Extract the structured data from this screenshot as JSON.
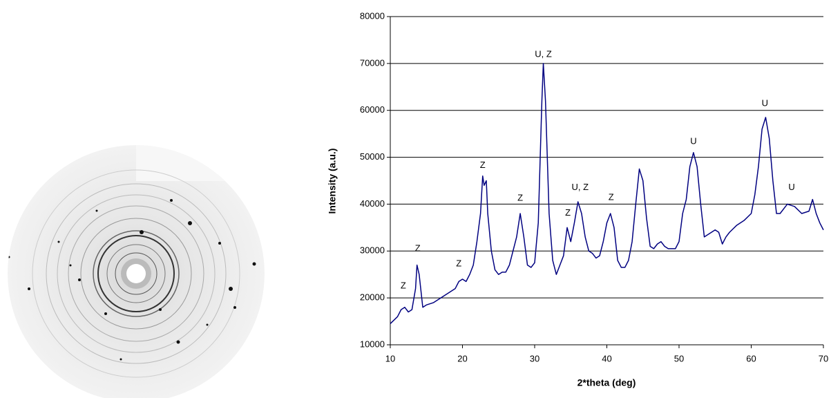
{
  "chart_data": {
    "type": "line",
    "x_label": "2*theta (deg)",
    "y_label": "Intensity (a.u.)",
    "x": [
      10,
      11,
      11.5,
      12,
      12.5,
      13,
      13.5,
      13.7,
      14,
      14.5,
      15,
      16,
      17,
      18,
      19,
      19.5,
      20,
      20.5,
      21,
      21.5,
      22,
      22.5,
      22.8,
      23,
      23.3,
      23.5,
      24,
      24.5,
      25,
      25.5,
      26,
      26.5,
      27,
      27.5,
      28,
      28.5,
      29,
      29.5,
      30,
      30.5,
      31,
      31.2,
      31.5,
      32,
      32.5,
      33,
      33.5,
      34,
      34.5,
      35,
      35.5,
      36,
      36.5,
      37,
      37.5,
      38,
      38.5,
      39,
      39.5,
      40,
      40.5,
      41,
      41.5,
      42,
      42.5,
      43,
      43.5,
      44,
      44.5,
      45,
      45.5,
      46,
      46.5,
      47,
      47.5,
      48,
      48.5,
      49,
      49.5,
      50,
      50.5,
      51,
      51.5,
      52,
      52.5,
      53,
      53.5,
      54,
      55,
      55.5,
      56,
      56.5,
      57,
      58,
      59,
      60,
      60.5,
      61,
      61.5,
      62,
      62.5,
      63,
      63.5,
      64,
      65,
      66,
      67,
      68,
      68.5,
      69,
      69.5,
      70
    ],
    "values": [
      14500,
      16000,
      17500,
      18000,
      17000,
      17500,
      22000,
      27000,
      25000,
      18000,
      18500,
      19000,
      20000,
      21000,
      22000,
      23500,
      24000,
      23500,
      25000,
      27000,
      32000,
      38000,
      46000,
      44000,
      45000,
      38000,
      30000,
      26000,
      25000,
      25500,
      25500,
      27000,
      30000,
      33000,
      38000,
      33000,
      27000,
      26500,
      27500,
      36000,
      62000,
      70000,
      62000,
      38000,
      28000,
      25000,
      27000,
      29000,
      35000,
      32000,
      36000,
      40500,
      38000,
      33000,
      30000,
      29500,
      28500,
      29000,
      32000,
      36000,
      38000,
      35000,
      28000,
      26500,
      26500,
      28000,
      32000,
      40000,
      47500,
      45000,
      37000,
      31000,
      30500,
      31500,
      32000,
      31000,
      30500,
      30500,
      30500,
      32000,
      38000,
      41000,
      48000,
      51000,
      48000,
      40000,
      33000,
      33500,
      34500,
      34000,
      31500,
      33000,
      34000,
      35500,
      36500,
      38000,
      42000,
      48000,
      56000,
      58500,
      54000,
      45000,
      38000,
      38000,
      40000,
      39500,
      38000,
      38500,
      41000,
      38000,
      36000,
      34500
    ],
    "color": "#000080",
    "xlim": [
      10,
      70
    ],
    "xticks": [
      10,
      20,
      30,
      40,
      50,
      60,
      70
    ],
    "ylim": [
      10000,
      80000
    ],
    "yticks": [
      10000,
      20000,
      30000,
      40000,
      50000,
      60000,
      70000,
      80000
    ],
    "grid": true,
    "annotations": [
      {
        "text": "Z",
        "x": 11.8,
        "y": 22500
      },
      {
        "text": "Z",
        "x": 13.8,
        "y": 30500
      },
      {
        "text": "Z",
        "x": 19.5,
        "y": 27200
      },
      {
        "text": "Z",
        "x": 22.8,
        "y": 48200
      },
      {
        "text": "Z",
        "x": 28,
        "y": 41200
      },
      {
        "text": "U, Z",
        "x": 31.2,
        "y": 71900
      },
      {
        "text": "Z",
        "x": 34.6,
        "y": 38100
      },
      {
        "text": "U, Z",
        "x": 36.3,
        "y": 43500
      },
      {
        "text": "Z",
        "x": 40.6,
        "y": 41400
      },
      {
        "text": "U",
        "x": 52,
        "y": 53300
      },
      {
        "text": "U",
        "x": 61.9,
        "y": 61400
      },
      {
        "text": "U",
        "x": 65.6,
        "y": 43500
      }
    ]
  }
}
